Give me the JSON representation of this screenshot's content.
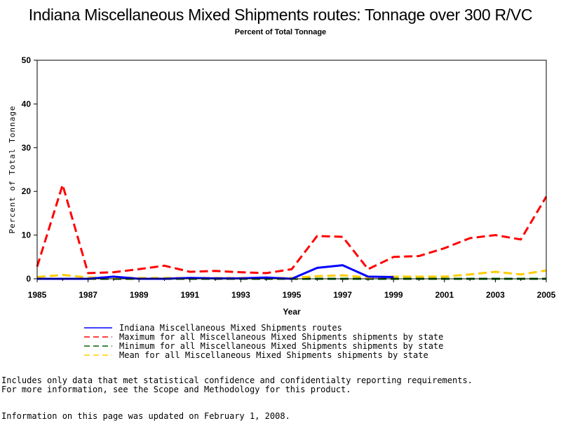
{
  "chart_data": {
    "type": "line",
    "title": "Indiana Miscellaneous Mixed Shipments routes: Tonnage over 300 R/VC",
    "subtitle": "Percent of Total Tonnage",
    "xlabel": "Year",
    "ylabel": "Percent of Total Tonnage",
    "xlim": [
      1985,
      2005
    ],
    "ylim": [
      0,
      50
    ],
    "xticks": [
      1985,
      1987,
      1989,
      1991,
      1993,
      1995,
      1997,
      1999,
      2001,
      2003,
      2005
    ],
    "yticks": [
      0,
      10,
      20,
      30,
      40,
      50
    ],
    "legend_position": "bottom",
    "x": [
      1985,
      1986,
      1987,
      1988,
      1989,
      1990,
      1991,
      1992,
      1993,
      1994,
      1995,
      1996,
      1997,
      1998,
      1999,
      2000,
      2001,
      2002,
      2003,
      2004,
      2005
    ],
    "series": [
      {
        "name": "Indiana Miscellaneous Mixed Shipments routes",
        "color": "#0000ff",
        "style": "solid",
        "values": [
          0,
          0,
          0,
          0.5,
          0,
          0,
          0.2,
          0.1,
          0.1,
          0.3,
          0,
          2.5,
          3.1,
          0.5,
          0.4,
          null,
          null,
          null,
          null,
          null,
          null
        ]
      },
      {
        "name": "Maximum for all Miscellaneous Mixed Shipments shipments by state",
        "color": "#ff0000",
        "style": "dashed",
        "values": [
          2.8,
          21.5,
          1.3,
          1.5,
          2.2,
          3.0,
          1.6,
          1.8,
          1.5,
          1.3,
          2.2,
          9.8,
          9.6,
          2.2,
          5.0,
          5.2,
          7.0,
          9.3,
          10.0,
          9.0,
          18.8
        ]
      },
      {
        "name": "Minimum for all Miscellaneous Mixed Shipments shipments by state",
        "color": "#006400",
        "style": "dashed",
        "values": [
          0,
          0,
          0,
          0,
          0,
          0,
          0,
          0,
          0,
          0,
          0,
          0,
          0,
          0,
          0,
          0,
          0,
          0,
          0,
          0,
          0
        ]
      },
      {
        "name": "Mean for all Miscellaneous Mixed Shipments shipments by state",
        "color": "#ffcc00",
        "style": "dashed",
        "values": [
          0.4,
          0.9,
          0.3,
          0.3,
          0.2,
          0.2,
          0.2,
          0.2,
          0.2,
          0.2,
          0.2,
          0.6,
          0.8,
          0.3,
          0.5,
          0.5,
          0.5,
          1.0,
          1.6,
          1.0,
          1.9
        ]
      }
    ]
  },
  "notes": {
    "line1": "Includes only data that met statistical confidence and confidentialty reporting requirements.",
    "line2": "For more information, see the Scope and Methodology for this product.",
    "line3": "Information on this page was updated on February 1, 2008."
  }
}
